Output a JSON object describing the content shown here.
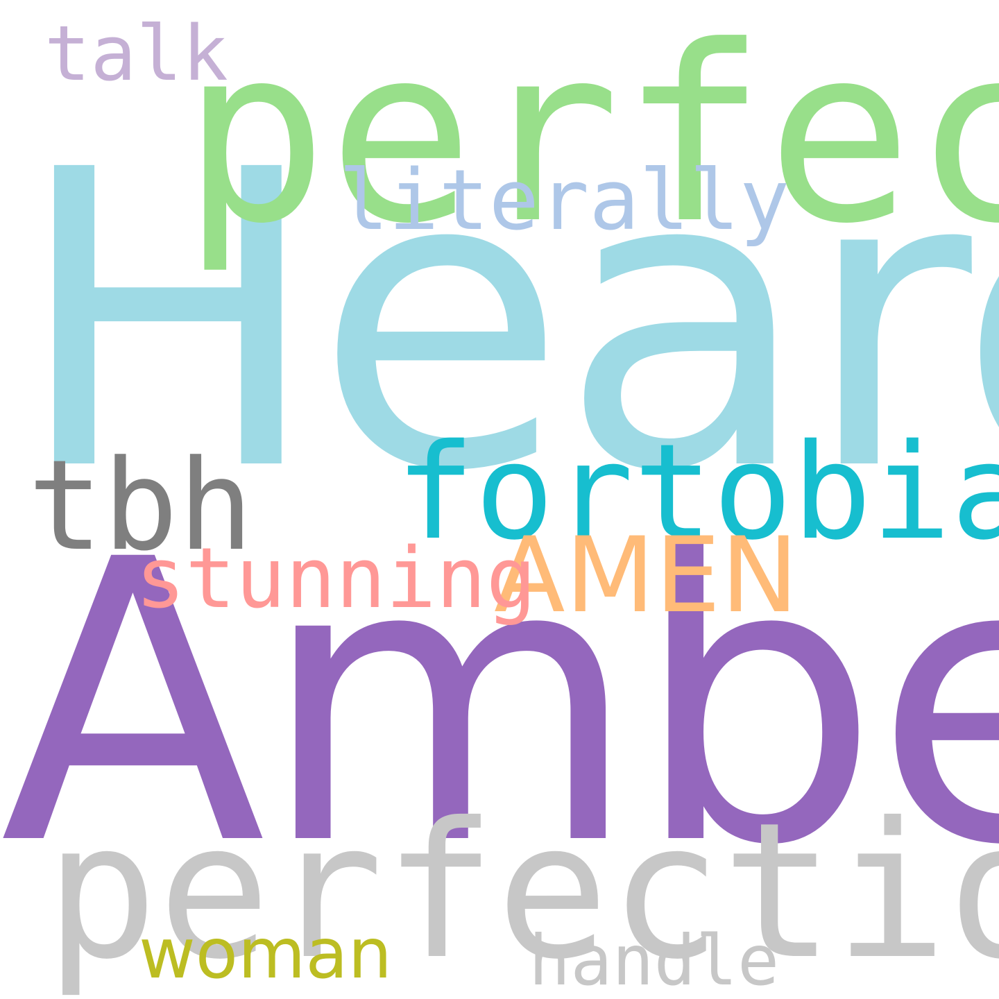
{
  "words": [
    {
      "id": "talk",
      "text": "talk",
      "color": "#c5b0d5"
    },
    {
      "id": "perfect",
      "text": "perfect",
      "color": "#98df8a"
    },
    {
      "id": "literally",
      "text": "literally",
      "color": "#aec7e8"
    },
    {
      "id": "heard",
      "text": "Heard",
      "color": "#9edae5"
    },
    {
      "id": "fortobias",
      "text": "fortobias",
      "color": "#17becf"
    },
    {
      "id": "tbh",
      "text": "tbh",
      "color": "#7f7f7f"
    },
    {
      "id": "amen",
      "text": "AMEN",
      "color": "#ffbb78"
    },
    {
      "id": "stunning",
      "text": "stunning",
      "color": "#ff9896"
    },
    {
      "id": "amber",
      "text": "Amber",
      "color": "#9467bd"
    },
    {
      "id": "perfection",
      "text": "perfection",
      "color": "#c7c7c7"
    },
    {
      "id": "woman",
      "text": "woman",
      "color": "#bcbd22"
    },
    {
      "id": "handle",
      "text": "handle",
      "color": "#c7c7c7"
    }
  ]
}
